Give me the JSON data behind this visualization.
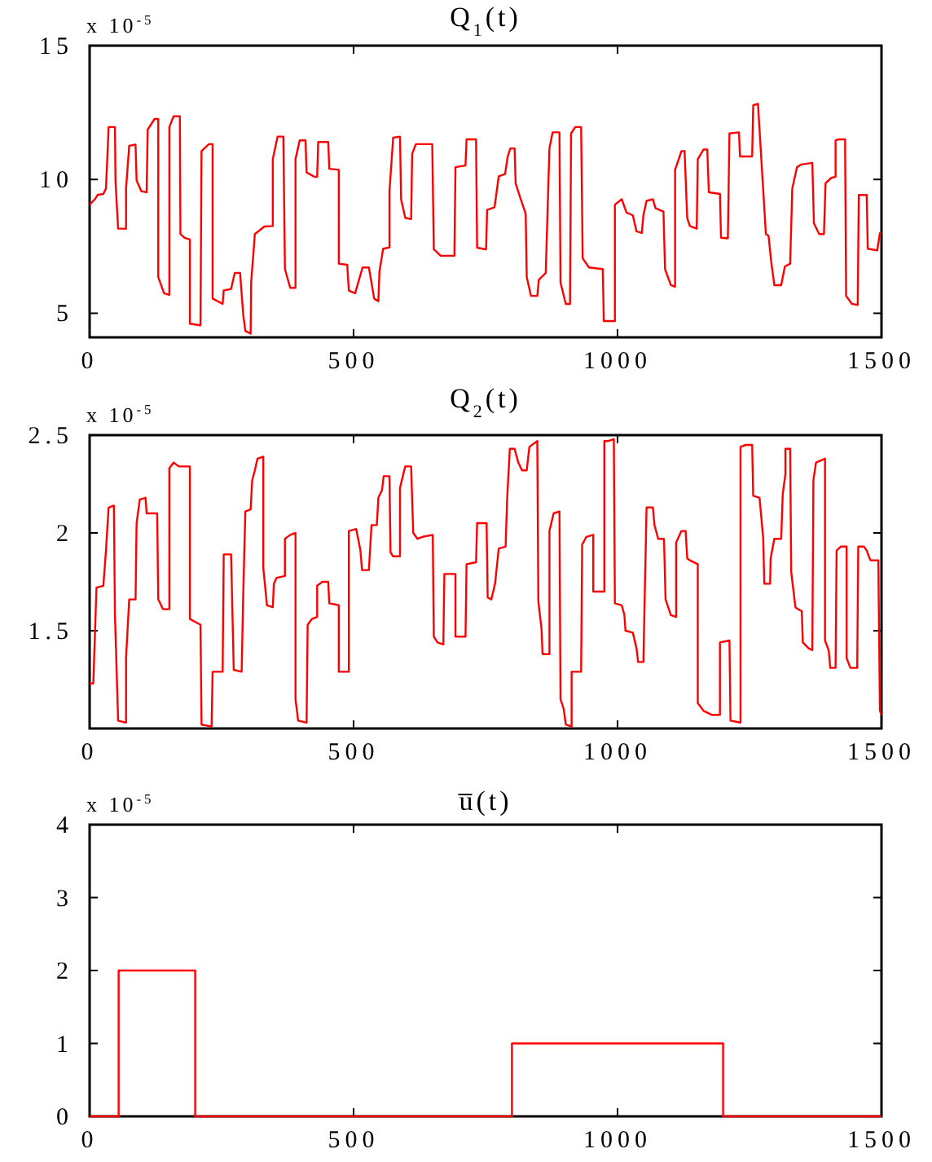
{
  "chart_data": [
    {
      "type": "line",
      "title": "Q$_{1}$(t)",
      "annotations": [
        "x 10$^{-5}$"
      ],
      "xlim": [
        0,
        1500
      ],
      "xticks": [
        0,
        500,
        1000,
        1500
      ],
      "ylim": [
        4.1,
        15
      ],
      "yticks": [
        5,
        10,
        15
      ],
      "series": [
        {
          "color": "#ff0000",
          "x": [
            0,
            10,
            15,
            26,
            31,
            36,
            48,
            49,
            54,
            69,
            69,
            75,
            87,
            89,
            98,
            108,
            110,
            123,
            130,
            130,
            141,
            151,
            151,
            159,
            171,
            172,
            180,
            190,
            190,
            210,
            212,
            226,
            233,
            233,
            252,
            254,
            268,
            275,
            285,
            291,
            295,
            305,
            306,
            313,
            331,
            347,
            347,
            356,
            367,
            370,
            380,
            390,
            390,
            398,
            409,
            411,
            426,
            431,
            433,
            452,
            454,
            472,
            472,
            488,
            491,
            503,
            517,
            529,
            539,
            547,
            549,
            556,
            568,
            568,
            575,
            588,
            590,
            598,
            609,
            611,
            618,
            649,
            652,
            665,
            691,
            693,
            712,
            714,
            732,
            734,
            751,
            753,
            767,
            775,
            787,
            792,
            797,
            805,
            807,
            815,
            826,
            828,
            836,
            848,
            851,
            864,
            871,
            877,
            890,
            892,
            902,
            910,
            912,
            920,
            931,
            934,
            946,
            972,
            974,
            995,
            995,
            1008,
            1017,
            1029,
            1036,
            1046,
            1049,
            1055,
            1067,
            1072,
            1087,
            1090,
            1101,
            1109,
            1109,
            1116,
            1121,
            1127,
            1132,
            1137,
            1150,
            1152,
            1163,
            1170,
            1173,
            1194,
            1196,
            1209,
            1212,
            1230,
            1232,
            1255,
            1257,
            1266,
            1281,
            1286,
            1291,
            1297,
            1310,
            1317,
            1327,
            1331,
            1340,
            1348,
            1369,
            1372,
            1382,
            1391,
            1394,
            1405,
            1413,
            1413,
            1420,
            1431,
            1433,
            1444,
            1455,
            1457,
            1472,
            1474,
            1492,
            1497,
            1500
          ],
          "values": [
            9.06,
            9.26,
            9.42,
            9.46,
            9.66,
            11.96,
            11.96,
            9.96,
            8.16,
            8.16,
            9.66,
            11.26,
            11.3,
            9.96,
            9.56,
            9.52,
            11.86,
            12.26,
            12.26,
            6.35,
            5.75,
            5.69,
            11.96,
            12.36,
            12.36,
            7.96,
            7.82,
            7.76,
            4.61,
            4.55,
            11.06,
            11.32,
            11.32,
            5.55,
            5.35,
            5.85,
            5.91,
            6.51,
            6.51,
            4.94,
            4.34,
            4.24,
            6.15,
            7.96,
            8.24,
            8.26,
            10.76,
            11.6,
            11.6,
            6.65,
            5.95,
            5.95,
            10.76,
            11.46,
            11.46,
            10.26,
            10.1,
            10.1,
            11.4,
            11.4,
            10.4,
            10.36,
            6.85,
            6.81,
            5.85,
            5.75,
            6.71,
            6.71,
            5.55,
            5.45,
            6.55,
            7.41,
            7.46,
            9.56,
            11.56,
            11.6,
            9.26,
            8.56,
            8.52,
            10.96,
            11.32,
            11.32,
            7.39,
            7.15,
            7.15,
            10.46,
            10.52,
            11.5,
            11.5,
            7.45,
            7.39,
            8.86,
            8.96,
            10.12,
            10.2,
            10.86,
            11.16,
            11.16,
            9.86,
            9.36,
            8.72,
            6.35,
            5.65,
            5.65,
            6.25,
            6.51,
            11.16,
            11.76,
            11.76,
            6.15,
            5.35,
            5.35,
            11.72,
            11.96,
            11.96,
            7.05,
            6.71,
            6.65,
            4.71,
            4.71,
            9.06,
            9.26,
            8.76,
            8.66,
            8.06,
            8.0,
            8.66,
            9.2,
            9.26,
            8.92,
            8.8,
            6.65,
            6.05,
            5.99,
            10.36,
            10.76,
            11.06,
            11.06,
            8.56,
            8.26,
            8.16,
            10.76,
            11.12,
            11.12,
            9.52,
            9.46,
            7.82,
            7.8,
            11.72,
            11.76,
            10.86,
            10.86,
            12.77,
            12.83,
            7.96,
            7.9,
            6.95,
            6.05,
            6.05,
            6.75,
            6.85,
            9.66,
            10.46,
            10.56,
            10.62,
            8.36,
            7.96,
            7.96,
            9.86,
            10.06,
            10.1,
            11.46,
            11.5,
            11.5,
            5.65,
            5.35,
            5.31,
            9.42,
            9.42,
            7.41,
            7.35,
            8.0,
            8.0
          ]
        }
      ]
    },
    {
      "type": "line",
      "title": "Q$_{2}$(t)",
      "annotations": [
        "x 10$^{-5}$"
      ],
      "xlim": [
        0,
        1500
      ],
      "xticks": [
        0,
        500,
        1000,
        1500
      ],
      "ylim": [
        1,
        2.5
      ],
      "yticks": [
        1.5,
        2,
        2.5
      ],
      "series": [
        {
          "color": "#ff0000",
          "x": [
            0,
            7,
            13,
            26,
            31,
            36,
            46,
            48,
            54,
            69,
            69,
            75,
            87,
            89,
            95,
            106,
            108,
            128,
            130,
            139,
            151,
            151,
            159,
            169,
            190,
            190,
            210,
            212,
            231,
            233,
            252,
            254,
            268,
            273,
            288,
            291,
            295,
            305,
            308,
            313,
            318,
            329,
            329,
            336,
            347,
            349,
            354,
            370,
            370,
            380,
            390,
            390,
            395,
            411,
            413,
            421,
            431,
            431,
            441,
            452,
            454,
            472,
            472,
            491,
            491,
            505,
            513,
            516,
            529,
            534,
            544,
            547,
            554,
            557,
            568,
            570,
            575,
            588,
            588,
            595,
            598,
            609,
            613,
            621,
            631,
            650,
            652,
            659,
            670,
            672,
            693,
            693,
            712,
            714,
            732,
            734,
            752,
            754,
            761,
            768,
            775,
            788,
            791,
            796,
            805,
            812,
            819,
            828,
            833,
            848,
            850,
            856,
            858,
            871,
            871,
            879,
            890,
            892,
            898,
            902,
            913,
            913,
            931,
            933,
            941,
            954,
            954,
            975,
            975,
            983,
            993,
            995,
            1008,
            1013,
            1015,
            1029,
            1036,
            1039,
            1049,
            1052,
            1055,
            1067,
            1070,
            1077,
            1088,
            1091,
            1101,
            1111,
            1111,
            1121,
            1129,
            1132,
            1137,
            1152,
            1152,
            1163,
            1178,
            1194,
            1194,
            1212,
            1214,
            1233,
            1233,
            1243,
            1255,
            1257,
            1269,
            1276,
            1278,
            1289,
            1290,
            1297,
            1310,
            1313,
            1318,
            1318,
            1327,
            1329,
            1337,
            1342,
            1349,
            1351,
            1362,
            1369,
            1371,
            1376,
            1393,
            1393,
            1400,
            1403,
            1413,
            1415,
            1423,
            1434,
            1434,
            1441,
            1454,
            1456,
            1467,
            1472,
            1479,
            1494,
            1497,
            1500
          ],
          "values": [
            1.23,
            1.23,
            1.72,
            1.73,
            1.91,
            2.13,
            2.14,
            1.58,
            1.04,
            1.03,
            1.36,
            1.66,
            1.66,
            2.05,
            2.17,
            2.18,
            2.1,
            2.1,
            1.66,
            1.61,
            1.61,
            2.33,
            2.36,
            2.34,
            2.34,
            1.56,
            1.53,
            1.02,
            1.01,
            1.29,
            1.29,
            1.89,
            1.89,
            1.3,
            1.29,
            1.69,
            2.11,
            2.12,
            2.27,
            2.32,
            2.38,
            2.39,
            1.82,
            1.63,
            1.62,
            1.74,
            1.77,
            1.78,
            1.97,
            1.99,
            2.0,
            1.15,
            1.04,
            1.03,
            1.53,
            1.56,
            1.57,
            1.73,
            1.75,
            1.75,
            1.64,
            1.63,
            1.29,
            1.29,
            2.01,
            2.02,
            1.91,
            1.81,
            1.81,
            2.04,
            2.04,
            2.18,
            2.22,
            2.29,
            2.29,
            1.9,
            1.88,
            1.88,
            2.23,
            2.31,
            2.34,
            2.34,
            2.0,
            1.97,
            1.98,
            1.99,
            1.47,
            1.44,
            1.43,
            1.79,
            1.79,
            1.47,
            1.47,
            1.84,
            1.85,
            2.05,
            2.05,
            1.67,
            1.66,
            1.74,
            1.92,
            1.93,
            2.18,
            2.43,
            2.43,
            2.36,
            2.32,
            2.32,
            2.44,
            2.47,
            1.65,
            1.51,
            1.38,
            1.38,
            2.01,
            2.1,
            2.11,
            1.15,
            1.1,
            1.02,
            1.01,
            1.29,
            1.29,
            1.94,
            1.98,
            1.99,
            1.7,
            1.7,
            2.47,
            2.47,
            2.48,
            1.64,
            1.63,
            1.58,
            1.5,
            1.49,
            1.41,
            1.34,
            1.34,
            1.74,
            2.13,
            2.13,
            2.04,
            1.97,
            1.97,
            1.66,
            1.58,
            1.57,
            1.95,
            2.01,
            2.01,
            1.87,
            1.86,
            1.84,
            1.13,
            1.09,
            1.07,
            1.07,
            1.44,
            1.45,
            1.04,
            1.03,
            2.44,
            2.45,
            2.45,
            2.19,
            2.18,
            1.97,
            1.74,
            1.74,
            1.87,
            1.97,
            1.97,
            2.2,
            2.3,
            2.43,
            2.43,
            1.8,
            1.62,
            1.61,
            1.6,
            1.44,
            1.41,
            1.4,
            2.27,
            2.36,
            2.38,
            1.45,
            1.4,
            1.31,
            1.31,
            1.91,
            1.93,
            1.93,
            1.36,
            1.31,
            1.31,
            1.93,
            1.93,
            1.91,
            1.86,
            1.86,
            1.09,
            1.07
          ]
        }
      ]
    },
    {
      "type": "line",
      "title": "u̅(t)",
      "annotations": [
        "x 10$^{-5}$"
      ],
      "xlim": [
        0,
        1500
      ],
      "xticks": [
        0,
        500,
        1000,
        1500
      ],
      "ylim": [
        0,
        4
      ],
      "yticks": [
        0,
        1,
        2,
        3,
        4
      ],
      "series": [
        {
          "color": "#ff0000",
          "x": [
            0,
            55,
            55,
            200,
            200,
            800,
            800,
            1200,
            1200,
            1500
          ],
          "values": [
            0,
            0,
            2,
            2,
            0,
            0,
            1,
            1,
            0,
            0
          ]
        }
      ]
    }
  ]
}
